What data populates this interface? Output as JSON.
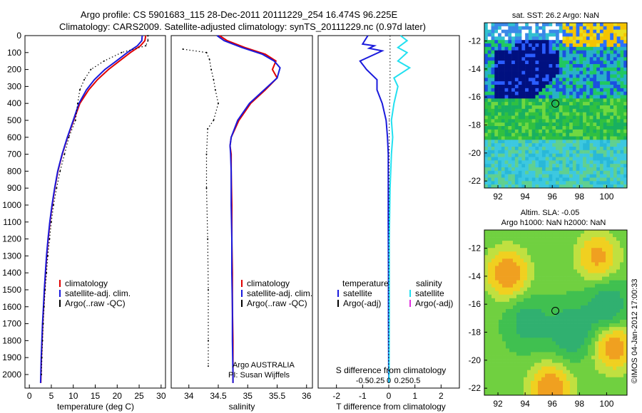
{
  "header": {
    "line1": "Argo profile: CS 5901683_115 28-Dec-2011 20111229_254 16.474S 96.225E",
    "line2": "Climatology: CARS2009. Satellite-adjusted climatology: synTS_20111229.nc (0.97d later)"
  },
  "footer_credit": "©IMOS 04-Jan-2012 17:00:33",
  "colors": {
    "climatology": "#e00000",
    "satellite": "#1a1adc",
    "argo": "#000000",
    "sal_satellite": "#22e0f0",
    "argo_adj_sal": "#e030e0"
  },
  "chart_data": [
    {
      "type": "line",
      "id": "temperature",
      "xlabel": "temperature (deg C)",
      "xlim": [
        -1,
        31
      ],
      "xticks": [
        0,
        5,
        10,
        15,
        20,
        25,
        30
      ],
      "ylim": [
        0,
        2080
      ],
      "yticks": [
        0,
        100,
        200,
        300,
        400,
        500,
        600,
        700,
        800,
        900,
        1000,
        1100,
        1200,
        1300,
        1400,
        1500,
        1600,
        1700,
        1800,
        1900,
        2000
      ],
      "legend": [
        "climatology",
        "satellite-adj. clim.",
        "Argo(..raw -QC)"
      ],
      "series": [
        {
          "name": "climatology",
          "style": "red",
          "points": [
            [
              26.5,
              0
            ],
            [
              26.3,
              30
            ],
            [
              25.3,
              60
            ],
            [
              23,
              100
            ],
            [
              20.5,
              150
            ],
            [
              18,
              200
            ],
            [
              15.5,
              260
            ],
            [
              13.5,
              320
            ],
            [
              11.5,
              400
            ],
            [
              10.1,
              500
            ],
            [
              8.7,
              600
            ],
            [
              7.5,
              700
            ],
            [
              6.5,
              800
            ],
            [
              5.8,
              900
            ],
            [
              5.2,
              1000
            ],
            [
              4.7,
              1100
            ],
            [
              4.3,
              1200
            ],
            [
              3.95,
              1300
            ],
            [
              3.7,
              1400
            ],
            [
              3.45,
              1500
            ],
            [
              3.25,
              1600
            ],
            [
              3.05,
              1700
            ],
            [
              2.9,
              1800
            ],
            [
              2.75,
              1900
            ],
            [
              2.65,
              2000
            ],
            [
              2.6,
              2050
            ]
          ]
        },
        {
          "name": "satellite-adj. clim.",
          "style": "blue",
          "points": [
            [
              25.7,
              0
            ],
            [
              25.6,
              30
            ],
            [
              24.6,
              60
            ],
            [
              22.3,
              100
            ],
            [
              19.8,
              150
            ],
            [
              17.2,
              200
            ],
            [
              14.8,
              260
            ],
            [
              13,
              320
            ],
            [
              11.3,
              400
            ],
            [
              10,
              500
            ],
            [
              8.65,
              600
            ],
            [
              7.45,
              700
            ],
            [
              6.45,
              800
            ],
            [
              5.75,
              900
            ],
            [
              5.15,
              1000
            ],
            [
              4.65,
              1100
            ],
            [
              4.25,
              1200
            ],
            [
              3.9,
              1300
            ],
            [
              3.65,
              1400
            ],
            [
              3.4,
              1500
            ],
            [
              3.2,
              1600
            ],
            [
              3,
              1700
            ],
            [
              2.85,
              1800
            ],
            [
              2.7,
              1900
            ],
            [
              2.6,
              2000
            ],
            [
              2.55,
              2050
            ]
          ]
        },
        {
          "name": "Argo(..raw -QC)",
          "style": "dots",
          "points": [
            [
              27,
              0
            ],
            [
              27,
              30
            ],
            [
              26.5,
              60
            ],
            [
              21,
              100
            ],
            [
              17,
              150
            ],
            [
              14,
              200
            ],
            [
              12.5,
              260
            ],
            [
              11.5,
              320
            ],
            [
              11,
              400
            ],
            [
              10.5,
              500
            ],
            [
              9,
              600
            ],
            [
              8,
              700
            ],
            [
              7,
              800
            ],
            [
              6.2,
              900
            ],
            [
              5.5,
              1000
            ],
            [
              5,
              1100
            ],
            [
              4.6,
              1200
            ],
            [
              4.2,
              1300
            ],
            [
              3.9,
              1400
            ],
            [
              3.6,
              1500
            ],
            [
              3.35,
              1600
            ],
            [
              3.15,
              1700
            ],
            [
              3,
              1800
            ],
            [
              2.85,
              1900
            ],
            [
              2.75,
              2000
            ]
          ]
        }
      ]
    },
    {
      "type": "line",
      "id": "salinity",
      "xlabel": "salinity",
      "xlim": [
        33.7,
        36.1
      ],
      "xticks": [
        34,
        34.5,
        35,
        35.5,
        36
      ],
      "ylim": [
        0,
        2080
      ],
      "legend": [
        "climatology",
        "satellite-adj. clim.",
        "Argo(..raw -QC)"
      ],
      "note_line1": "Argo AUSTRALIA",
      "note_line2": "PI: Susan Wijffels",
      "series": [
        {
          "name": "climatology",
          "style": "red",
          "points": [
            [
              34.52,
              0
            ],
            [
              34.65,
              30
            ],
            [
              34.95,
              70
            ],
            [
              35.3,
              110
            ],
            [
              35.48,
              150
            ],
            [
              35.42,
              200
            ],
            [
              35.5,
              250
            ],
            [
              35.3,
              320
            ],
            [
              35.05,
              400
            ],
            [
              34.85,
              500
            ],
            [
              34.72,
              600
            ],
            [
              34.7,
              650
            ],
            [
              34.72,
              700
            ],
            [
              34.72,
              800
            ],
            [
              34.73,
              1000
            ],
            [
              34.73,
              1200
            ],
            [
              34.74,
              1400
            ],
            [
              34.74,
              1600
            ],
            [
              34.75,
              1800
            ],
            [
              34.75,
              2000
            ],
            [
              34.75,
              2050
            ]
          ]
        },
        {
          "name": "satellite-adj. clim.",
          "style": "blue",
          "points": [
            [
              34.48,
              0
            ],
            [
              34.6,
              30
            ],
            [
              34.9,
              70
            ],
            [
              35.25,
              110
            ],
            [
              35.45,
              150
            ],
            [
              35.55,
              190
            ],
            [
              35.5,
              250
            ],
            [
              35.28,
              320
            ],
            [
              35.03,
              400
            ],
            [
              34.83,
              500
            ],
            [
              34.72,
              600
            ],
            [
              34.7,
              650
            ],
            [
              34.71,
              700
            ],
            [
              34.72,
              800
            ],
            [
              34.72,
              1000
            ],
            [
              34.73,
              1200
            ],
            [
              34.73,
              1400
            ],
            [
              34.74,
              1600
            ],
            [
              34.74,
              1800
            ],
            [
              34.75,
              2000
            ],
            [
              34.75,
              2050
            ]
          ]
        },
        {
          "name": "Argo(..raw -QC)",
          "style": "dots",
          "points": [
            [
              33.9,
              80
            ],
            [
              34.3,
              100
            ],
            [
              34.35,
              140
            ],
            [
              34.38,
              200
            ],
            [
              34.42,
              260
            ],
            [
              34.45,
              320
            ],
            [
              34.5,
              400
            ],
            [
              34.42,
              500
            ],
            [
              34.32,
              550
            ],
            [
              34.3,
              700
            ],
            [
              34.3,
              900
            ],
            [
              34.32,
              1200
            ],
            [
              34.33,
              1500
            ],
            [
              34.33,
              1800
            ],
            [
              34.33,
              1950
            ]
          ]
        }
      ]
    },
    {
      "type": "line",
      "id": "difference",
      "xlabel": "T difference from climatology",
      "xlabel_top": "S difference from climatology",
      "xlim": [
        -2.7,
        2.7
      ],
      "xticks_T": [
        -2,
        -1,
        0,
        1,
        2
      ],
      "xticks_S": [
        "-0.5",
        "-0.25",
        "0",
        "0.25",
        "0.5"
      ],
      "ylim": [
        0,
        2080
      ],
      "legend_title_left": "temperature",
      "legend_title_right": "salinity",
      "legend_left": [
        "satellite",
        "Argo(-adj)"
      ],
      "legend_right": [
        "satellite",
        "Argo(-adj)"
      ],
      "series": [
        {
          "name": "temperature satellite",
          "style": "blue",
          "points": [
            [
              -0.8,
              0
            ],
            [
              -0.9,
              25
            ],
            [
              -1,
              50
            ],
            [
              -0.55,
              60
            ],
            [
              -0.75,
              75
            ],
            [
              -0.25,
              90
            ],
            [
              -1.1,
              150
            ],
            [
              -0.85,
              200
            ],
            [
              -0.45,
              260
            ],
            [
              -0.45,
              320
            ],
            [
              -0.25,
              400
            ],
            [
              -0.1,
              500
            ],
            [
              -0.05,
              600
            ],
            [
              -0.02,
              700
            ],
            [
              -0.02,
              900
            ],
            [
              -0.02,
              1100
            ],
            [
              -0.01,
              1400
            ],
            [
              -0.01,
              1700
            ],
            [
              0,
              2050
            ]
          ]
        },
        {
          "name": "salinity satellite",
          "style": "cyan",
          "points": [
            [
              0.45,
              0
            ],
            [
              0.7,
              30
            ],
            [
              0.35,
              70
            ],
            [
              0.7,
              100
            ],
            [
              0.35,
              150
            ],
            [
              0.8,
              190
            ],
            [
              0.2,
              250
            ],
            [
              0.35,
              300
            ],
            [
              0.2,
              400
            ],
            [
              0.1,
              500
            ],
            [
              0.15,
              600
            ],
            [
              0.1,
              700
            ],
            [
              0.05,
              900
            ],
            [
              0.02,
              1200
            ],
            [
              0.02,
              1600
            ],
            [
              0.01,
              2050
            ]
          ]
        },
        {
          "name": "Argo(-adj)",
          "style": "dots",
          "points": [
            [
              0.05,
              0
            ],
            [
              0.05,
              300
            ],
            [
              0.02,
              500
            ],
            [
              0.01,
              900
            ],
            [
              0,
              1500
            ],
            [
              0,
              2000
            ]
          ]
        }
      ]
    },
    {
      "type": "heatmap",
      "id": "sst-map",
      "title": "sat. SST: 26.2 Argo: NaN",
      "xlim": [
        91,
        101.5
      ],
      "ylim": [
        -22.5,
        -10.7
      ],
      "xticks": [
        92,
        94,
        96,
        98,
        100
      ],
      "yticks": [
        -12,
        -14,
        -16,
        -18,
        -20,
        -22
      ],
      "marker": [
        96.225,
        -16.474
      ]
    },
    {
      "type": "heatmap",
      "id": "sla-map",
      "title_line1": "Altim. SLA: -0.05",
      "title_line2": "Argo h1000: NaN h2000: NaN",
      "xlim": [
        91,
        101.5
      ],
      "ylim": [
        -22.5,
        -10.7
      ],
      "xticks": [
        92,
        94,
        96,
        98,
        100
      ],
      "yticks": [
        -12,
        -14,
        -16,
        -18,
        -20,
        -22
      ],
      "marker": [
        96.225,
        -16.474
      ]
    }
  ]
}
